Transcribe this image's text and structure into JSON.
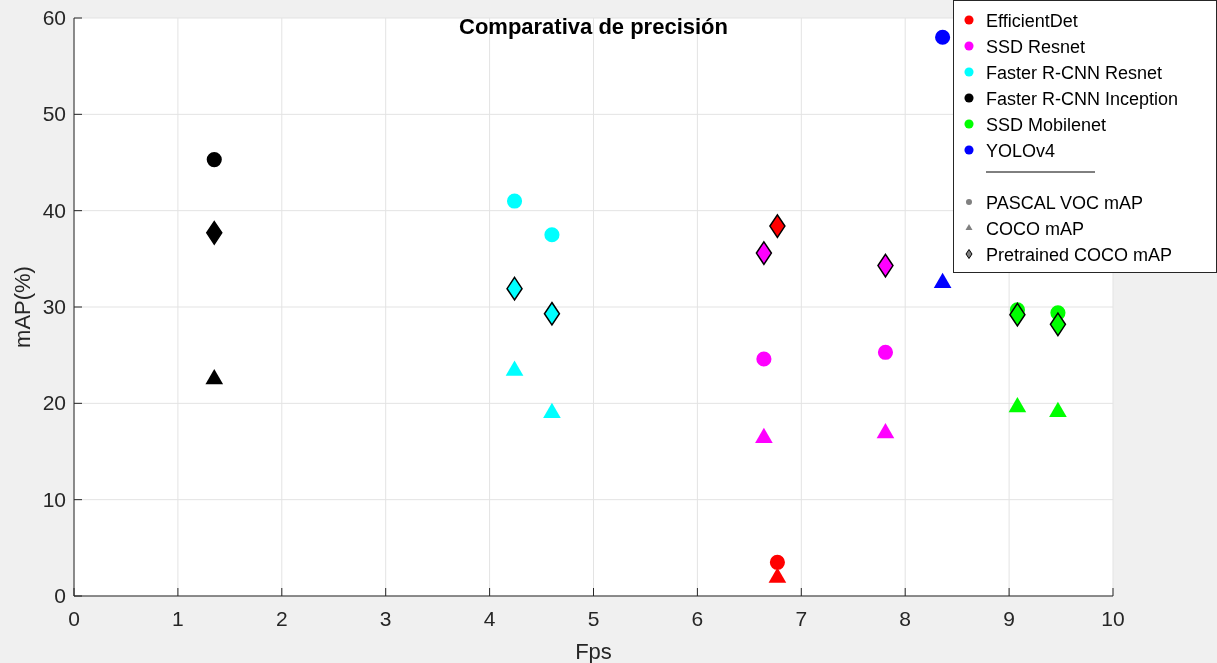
{
  "chart_data": {
    "type": "scatter",
    "title": "Comparativa de precisión",
    "xlabel": "Fps",
    "ylabel": "mAP(%)",
    "series": [
      {
        "name": "EfficientDet",
        "color": "#ff0000",
        "marker": "circle",
        "x": [
          6.77
        ],
        "values": [
          3.5
        ]
      },
      {
        "name": "SSD Resnet",
        "color": "#ff00ff",
        "marker": "circle",
        "x": [
          6.64,
          7.81
        ],
        "values": [
          24.6,
          25.3
        ]
      },
      {
        "name": "Faster R-CNN Resnet",
        "color": "#00ffff",
        "marker": "circle",
        "x": [
          4.24,
          4.6
        ],
        "values": [
          41.0,
          37.5
        ]
      },
      {
        "name": "Faster R-CNN Inception",
        "color": "#000000",
        "marker": "circle",
        "x": [
          1.35
        ],
        "values": [
          45.3
        ]
      },
      {
        "name": "SSD Mobilenet",
        "color": "#00ff00",
        "marker": "circle",
        "x": [
          9.08,
          9.47
        ],
        "values": [
          29.7,
          29.4
        ]
      },
      {
        "name": "YOLOv4",
        "color": "#0000ff",
        "marker": "circle",
        "x": [
          8.36
        ],
        "values": [
          58.0
        ]
      },
      {
        "color": "#ff0000",
        "marker": "triangle",
        "x": [
          6.77
        ],
        "values": [
          1.9
        ]
      },
      {
        "color": "#ff00ff",
        "marker": "triangle",
        "x": [
          6.64,
          7.81
        ],
        "values": [
          16.4,
          16.9
        ]
      },
      {
        "color": "#00ffff",
        "marker": "triangle",
        "x": [
          4.24,
          4.6
        ],
        "values": [
          23.4,
          19.0
        ]
      },
      {
        "color": "#000000",
        "marker": "triangle",
        "x": [
          1.35
        ],
        "values": [
          22.5
        ]
      },
      {
        "color": "#00ff00",
        "marker": "triangle",
        "x": [
          9.08,
          9.47
        ],
        "values": [
          19.6,
          19.1
        ]
      },
      {
        "color": "#0000ff",
        "marker": "triangle",
        "x": [
          8.36
        ],
        "values": [
          32.5
        ]
      },
      {
        "color": "#ff0000",
        "marker": "diamond",
        "x": [
          6.77
        ],
        "values": [
          38.4
        ]
      },
      {
        "color": "#ff00ff",
        "marker": "diamond",
        "x": [
          6.64,
          7.81
        ],
        "values": [
          35.6,
          34.3
        ]
      },
      {
        "color": "#00ffff",
        "marker": "diamond",
        "x": [
          4.24,
          4.6
        ],
        "values": [
          31.9,
          29.3
        ]
      },
      {
        "color": "#000000",
        "marker": "diamond",
        "x": [
          1.35
        ],
        "values": [
          37.7
        ]
      },
      {
        "color": "#00ff00",
        "marker": "diamond",
        "x": [
          9.08,
          9.47
        ],
        "values": [
          29.2,
          28.2
        ]
      }
    ],
    "annotations": [
      "PASCAL VOC mAP",
      "COCO mAP",
      "Pretrained COCO mAP"
    ],
    "xlim": [
      0,
      10
    ],
    "xticks": [
      0,
      1,
      2,
      3,
      4,
      5,
      6,
      7,
      8,
      9,
      10
    ],
    "ylim": [
      0,
      60
    ],
    "yticks": [
      0,
      10,
      20,
      30,
      40,
      50,
      60
    ],
    "grid": true,
    "legend": "top right"
  }
}
